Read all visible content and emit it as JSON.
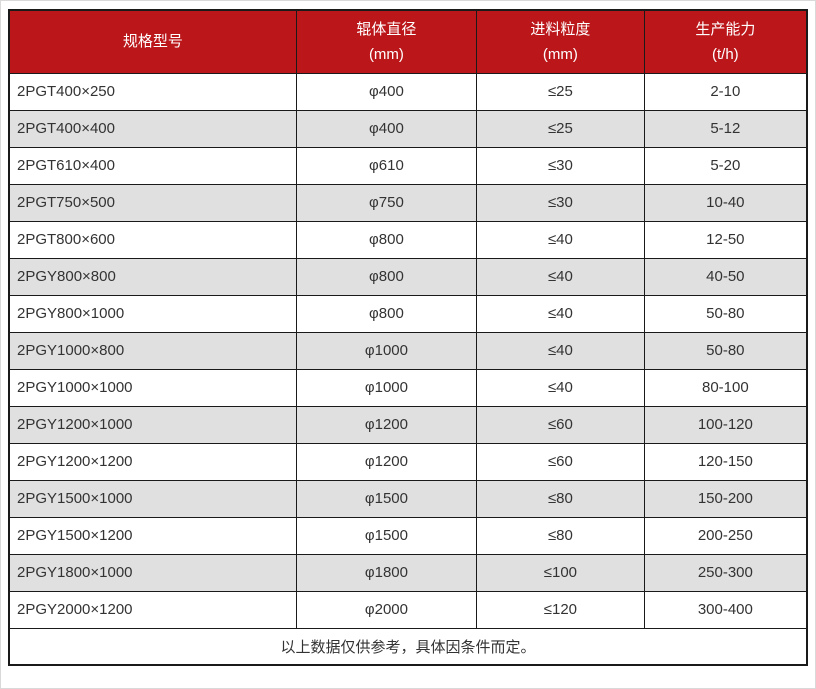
{
  "table": {
    "columns": [
      {
        "title": "规格型号",
        "unit": ""
      },
      {
        "title": "辊体直径",
        "unit": "(mm)"
      },
      {
        "title": "进料粒度",
        "unit": "(mm)"
      },
      {
        "title": "生产能力",
        "unit": "(t/h)"
      }
    ],
    "rows": [
      [
        "2PGT400×250",
        "φ400",
        "≤25",
        "2-10"
      ],
      [
        "2PGT400×400",
        "φ400",
        "≤25",
        "5-12"
      ],
      [
        "2PGT610×400",
        "φ610",
        "≤30",
        "5-20"
      ],
      [
        "2PGT750×500",
        "φ750",
        "≤30",
        "10-40"
      ],
      [
        "2PGT800×600",
        "φ800",
        "≤40",
        "12-50"
      ],
      [
        "2PGY800×800",
        "φ800",
        "≤40",
        "40-50"
      ],
      [
        "2PGY800×1000",
        "φ800",
        "≤40",
        "50-80"
      ],
      [
        "2PGY1000×800",
        "φ1000",
        "≤40",
        "50-80"
      ],
      [
        "2PGY1000×1000",
        "φ1000",
        "≤40",
        "80-100"
      ],
      [
        "2PGY1200×1000",
        "φ1200",
        "≤60",
        "100-120"
      ],
      [
        "2PGY1200×1200",
        "φ1200",
        "≤60",
        "120-150"
      ],
      [
        "2PGY1500×1000",
        "φ1500",
        "≤80",
        "150-200"
      ],
      [
        "2PGY1500×1200",
        "φ1500",
        "≤80",
        "200-250"
      ],
      [
        "2PGY1800×1000",
        "φ1800",
        "≤100",
        "250-300"
      ],
      [
        "2PGY2000×1200",
        "φ2000",
        "≤120",
        "300-400"
      ]
    ],
    "footnote": "以上数据仅供参考，具体因条件而定。"
  },
  "colors": {
    "header-bg": "#BB171B",
    "header-text": "#FFFFFF",
    "row-bg": "#FFFFFF",
    "row-alt-bg": "#E0E0E0",
    "grid-border": "#1A1A1A",
    "cell-text": "#333333",
    "page-outline": "#D9D9D9"
  },
  "chart_data": {
    "type": "table",
    "title": "",
    "columns": [
      "规格型号",
      "辊体直径 (mm)",
      "进料粒度 (mm)",
      "生产能力 (t/h)"
    ],
    "rows": [
      [
        "2PGT400×250",
        "φ400",
        "≤25",
        "2-10"
      ],
      [
        "2PGT400×400",
        "φ400",
        "≤25",
        "5-12"
      ],
      [
        "2PGT610×400",
        "φ610",
        "≤30",
        "5-20"
      ],
      [
        "2PGT750×500",
        "φ750",
        "≤30",
        "10-40"
      ],
      [
        "2PGT800×600",
        "φ800",
        "≤40",
        "12-50"
      ],
      [
        "2PGY800×800",
        "φ800",
        "≤40",
        "40-50"
      ],
      [
        "2PGY800×1000",
        "φ800",
        "≤40",
        "50-80"
      ],
      [
        "2PGY1000×800",
        "φ1000",
        "≤40",
        "50-80"
      ],
      [
        "2PGY1000×1000",
        "φ1000",
        "≤40",
        "80-100"
      ],
      [
        "2PGY1200×1000",
        "φ1200",
        "≤60",
        "100-120"
      ],
      [
        "2PGY1200×1200",
        "φ1200",
        "≤60",
        "120-150"
      ],
      [
        "2PGY1500×1000",
        "φ1500",
        "≤80",
        "150-200"
      ],
      [
        "2PGY1500×1200",
        "φ1500",
        "≤80",
        "200-250"
      ],
      [
        "2PGY1800×1000",
        "φ1800",
        "≤100",
        "250-300"
      ],
      [
        "2PGY2000×1200",
        "φ2000",
        "≤120",
        "300-400"
      ]
    ],
    "footnote": "以上数据仅供参考，具体因条件而定。",
    "layout_hints": {
      "header_style": "red background, white text, 2-line headers with units",
      "body_style": "alternating white / light-gray rows, black grid lines",
      "first_column_align": "left",
      "other_columns_align": "center"
    }
  }
}
